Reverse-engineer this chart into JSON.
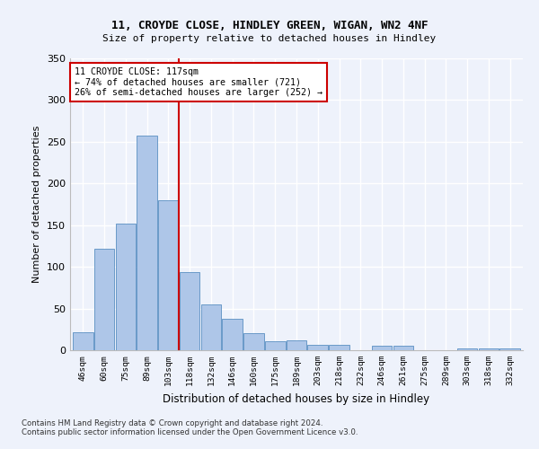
{
  "title1": "11, CROYDE CLOSE, HINDLEY GREEN, WIGAN, WN2 4NF",
  "title2": "Size of property relative to detached houses in Hindley",
  "xlabel": "Distribution of detached houses by size in Hindley",
  "ylabel": "Number of detached properties",
  "categories": [
    "46sqm",
    "60sqm",
    "75sqm",
    "89sqm",
    "103sqm",
    "118sqm",
    "132sqm",
    "146sqm",
    "160sqm",
    "175sqm",
    "189sqm",
    "203sqm",
    "218sqm",
    "232sqm",
    "246sqm",
    "261sqm",
    "275sqm",
    "289sqm",
    "303sqm",
    "318sqm",
    "332sqm"
  ],
  "values": [
    22,
    122,
    152,
    257,
    180,
    94,
    55,
    38,
    20,
    11,
    12,
    7,
    7,
    0,
    5,
    5,
    0,
    0,
    2,
    2,
    2
  ],
  "bar_color": "#aec6e8",
  "bar_edge_color": "#5a8fc2",
  "marker_label_line1": "11 CROYDE CLOSE: 117sqm",
  "marker_label_line2": "← 74% of detached houses are smaller (721)",
  "marker_label_line3": "26% of semi-detached houses are larger (252) →",
  "marker_color": "#cc0000",
  "ylim": [
    0,
    350
  ],
  "yticks": [
    0,
    50,
    100,
    150,
    200,
    250,
    300,
    350
  ],
  "bg_color": "#eef2fb",
  "grid_color": "#ffffff",
  "footnote1": "Contains HM Land Registry data © Crown copyright and database right 2024.",
  "footnote2": "Contains public sector information licensed under the Open Government Licence v3.0."
}
